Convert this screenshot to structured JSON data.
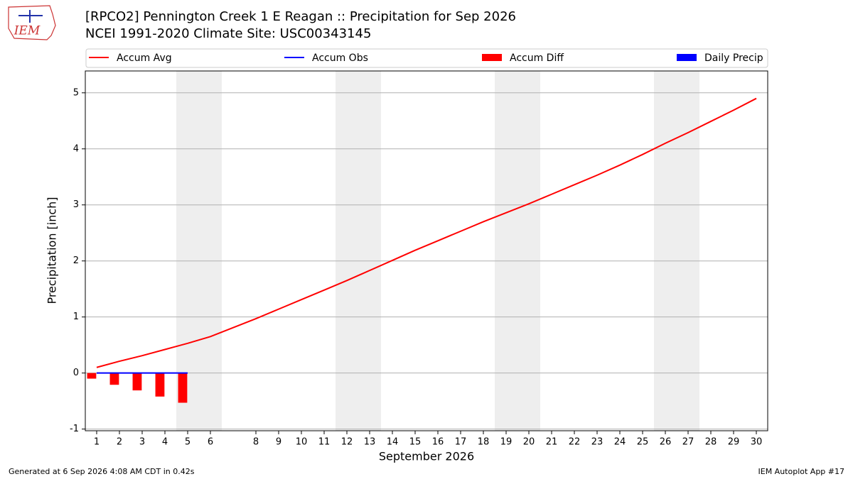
{
  "logo_text": "IEM",
  "footer_left": "Generated at 6 Sep 2026 4:08 AM CDT in 0.42s",
  "footer_right": "IEM Autoplot App #17",
  "chart_data": {
    "type": "line",
    "title": "[RPCO2] Pennington Creek 1 E Reagan :: Precipitation for Sep 2026",
    "subtitle": "NCEI 1991-2020 Climate Site: USC00343145",
    "x_label": "September 2026",
    "y_label": "Precipitation [inch]",
    "xlim": [
      0.5,
      30.5
    ],
    "xticks": [
      1,
      2,
      3,
      4,
      5,
      6,
      8,
      9,
      10,
      11,
      12,
      13,
      14,
      15,
      16,
      17,
      18,
      19,
      20,
      21,
      22,
      23,
      24,
      25,
      26,
      27,
      28,
      29,
      30
    ],
    "ylim": [
      -1.03,
      5.39
    ],
    "yticks": [
      -1,
      0,
      1,
      2,
      3,
      4,
      5
    ],
    "grid": true,
    "shaded_spans": [
      [
        4.5,
        6.5
      ],
      [
        11.5,
        13.5
      ],
      [
        18.5,
        20.5
      ],
      [
        25.5,
        27.5
      ]
    ],
    "shade_color": "#eeeeee",
    "x": [
      1,
      2,
      3,
      4,
      5,
      6,
      7,
      8,
      9,
      10,
      11,
      12,
      13,
      14,
      15,
      16,
      17,
      18,
      19,
      20,
      21,
      22,
      23,
      24,
      25,
      26,
      27,
      28,
      29,
      30
    ],
    "series": [
      {
        "name": "Accum Avg",
        "kind": "line",
        "color": "#ff0000",
        "values": [
          0.1,
          0.21,
          0.31,
          0.42,
          0.53,
          0.65,
          0.81,
          0.97,
          1.14,
          1.31,
          1.48,
          1.65,
          1.83,
          2.01,
          2.19,
          2.36,
          2.53,
          2.7,
          2.86,
          3.02,
          3.19,
          3.36,
          3.53,
          3.71,
          3.9,
          4.1,
          4.29,
          4.49,
          4.69,
          4.9
        ]
      },
      {
        "name": "Accum Obs",
        "kind": "line",
        "color": "#0000ff",
        "values": [
          0,
          0,
          0,
          0,
          0,
          null,
          null,
          null,
          null,
          null,
          null,
          null,
          null,
          null,
          null,
          null,
          null,
          null,
          null,
          null,
          null,
          null,
          null,
          null,
          null,
          null,
          null,
          null,
          null,
          null
        ]
      },
      {
        "name": "Accum Diff",
        "kind": "bar",
        "color": "#ff0000",
        "values": [
          -0.1,
          -0.21,
          -0.31,
          -0.42,
          -0.53,
          null,
          null,
          null,
          null,
          null,
          null,
          null,
          null,
          null,
          null,
          null,
          null,
          null,
          null,
          null,
          null,
          null,
          null,
          null,
          null,
          null,
          null,
          null,
          null,
          null
        ]
      },
      {
        "name": "Daily Precip",
        "kind": "bar",
        "color": "#0000ff",
        "values": [
          0,
          0,
          0,
          0,
          0,
          null,
          null,
          null,
          null,
          null,
          null,
          null,
          null,
          null,
          null,
          null,
          null,
          null,
          null,
          null,
          null,
          null,
          null,
          null,
          null,
          null,
          null,
          null,
          null,
          null
        ]
      }
    ]
  }
}
